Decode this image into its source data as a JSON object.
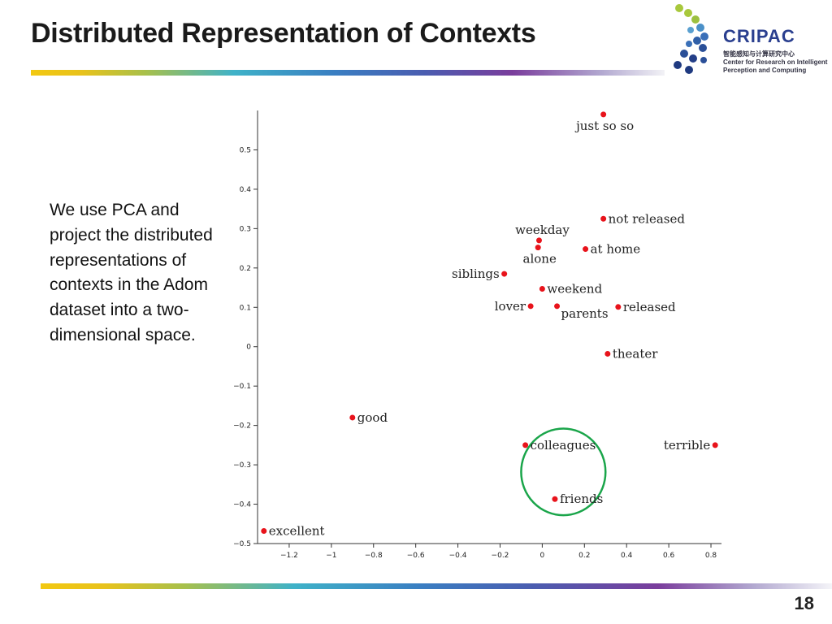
{
  "slide": {
    "title": "Distributed Representation of Contexts",
    "body": "We use PCA and project the distributed representations of contexts in the Adom dataset into a two-dimensional space.",
    "page_number": "18"
  },
  "logo": {
    "name": "CRIPAC",
    "subtitle_cn": "智能感知与计算研究中心",
    "subtitle_en": "Center for Research on Intelligent Perception and Computing"
  },
  "colors": {
    "point": "#e8131b",
    "circle": "#1aa54a",
    "axis": "#333333"
  },
  "chart_data": {
    "type": "scatter",
    "title": "",
    "xlabel": "",
    "ylabel": "",
    "xlim": [
      -1.35,
      0.85
    ],
    "ylim": [
      -0.5,
      0.6
    ],
    "xticks": [
      -1.2,
      -1,
      -0.8,
      -0.6,
      -0.4,
      -0.2,
      0,
      0.2,
      0.4,
      0.6,
      0.8
    ],
    "xtick_labels": [
      "−1.2",
      "−1",
      "−0.8",
      "−0.6",
      "−0.4",
      "−0.2",
      "0",
      "0.2",
      "0.4",
      "0.6",
      "0.8"
    ],
    "yticks": [
      -0.5,
      -0.4,
      -0.3,
      -0.2,
      -0.1,
      0,
      0.1,
      0.2,
      0.3,
      0.4,
      0.5
    ],
    "ytick_labels": [
      "−0.5",
      "−0.4",
      "−0.3",
      "−0.2",
      "−0.1",
      "0",
      "0.1",
      "0.2",
      "0.3",
      "0.4",
      "0.5"
    ],
    "grid": false,
    "points": [
      {
        "label": "just so so",
        "x": 0.29,
        "y": 0.59,
        "label_pos": "below"
      },
      {
        "label": "not released",
        "x": 0.29,
        "y": 0.325,
        "label_pos": "right"
      },
      {
        "label": "weekday",
        "x": -0.015,
        "y": 0.27,
        "label_pos": "above"
      },
      {
        "label": "alone",
        "x": -0.02,
        "y": 0.252,
        "label_pos": "below"
      },
      {
        "label": "at home",
        "x": 0.205,
        "y": 0.248,
        "label_pos": "right"
      },
      {
        "label": "siblings",
        "x": -0.18,
        "y": 0.185,
        "label_pos": "left"
      },
      {
        "label": "weekend",
        "x": 0.0,
        "y": 0.147,
        "label_pos": "right"
      },
      {
        "label": "lover",
        "x": -0.055,
        "y": 0.103,
        "label_pos": "left"
      },
      {
        "label": "parents",
        "x": 0.07,
        "y": 0.103,
        "label_pos": "below-right"
      },
      {
        "label": "released",
        "x": 0.36,
        "y": 0.101,
        "label_pos": "right"
      },
      {
        "label": "theater",
        "x": 0.31,
        "y": -0.018,
        "label_pos": "right"
      },
      {
        "label": "good",
        "x": -0.9,
        "y": -0.18,
        "label_pos": "right"
      },
      {
        "label": "colleagues",
        "x": -0.08,
        "y": -0.25,
        "label_pos": "right"
      },
      {
        "label": "terrible",
        "x": 0.82,
        "y": -0.25,
        "label_pos": "left"
      },
      {
        "label": "friends",
        "x": 0.06,
        "y": -0.387,
        "label_pos": "right"
      },
      {
        "label": "excellent",
        "x": -1.32,
        "y": -0.468,
        "label_pos": "right"
      }
    ],
    "annotation": {
      "type": "ellipse",
      "cx": 0.1,
      "cy": -0.318,
      "rx": 0.2,
      "ry": 0.11
    }
  }
}
